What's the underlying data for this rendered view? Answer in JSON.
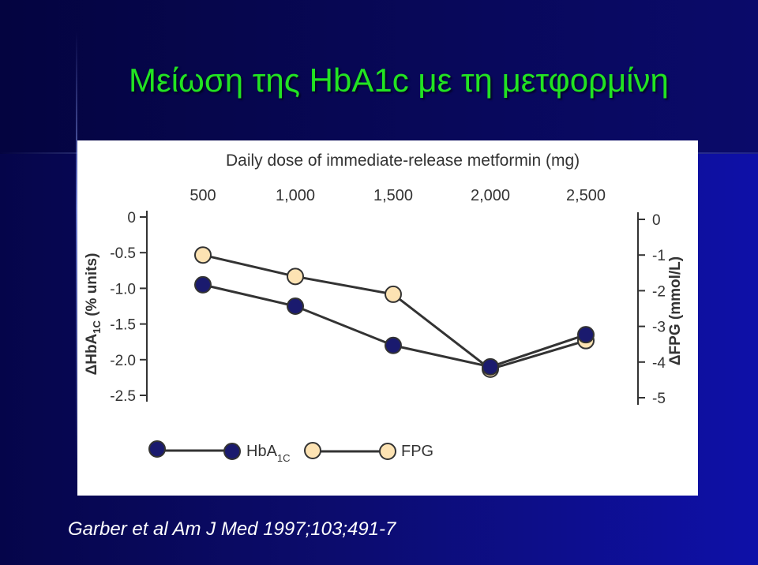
{
  "slide": {
    "title": "Μείωση της HbA1c με τη μετφορμίνη",
    "citation": "Garber et al Am J Med 1997;103;491-7"
  },
  "chart_data": {
    "type": "line",
    "title": "Daily dose of immediate-release metformin (mg)",
    "categories": [
      "500",
      "1,000",
      "1,500",
      "2,000",
      "2,500"
    ],
    "x_axis_position": "top",
    "y_left": {
      "label_main": "ΔHbA",
      "label_sub": "1C",
      "label_rest": " (% units)",
      "range": [
        -2.5,
        0
      ],
      "ticks": [
        "0",
        "-0.5",
        "-1.0",
        "-1.5",
        "-2.0",
        "-2.5"
      ],
      "tick_values": [
        0,
        -0.5,
        -1.0,
        -1.5,
        -2.0,
        -2.5
      ]
    },
    "y_right": {
      "label": "ΔFPG (mmol/L)",
      "range": [
        -5,
        0
      ],
      "ticks": [
        "0",
        "-1",
        "-2",
        "-3",
        "-4",
        "-5"
      ],
      "tick_values": [
        0,
        -1,
        -2,
        -3,
        -4,
        -5
      ]
    },
    "series": [
      {
        "name_main": "HbA",
        "name_sub": "1C",
        "axis": "left",
        "color": "#1a1a6e",
        "values": [
          -0.95,
          -1.25,
          -1.8,
          -2.1,
          -1.65
        ]
      },
      {
        "name": "FPG",
        "axis": "right",
        "color": "#fde3b3",
        "values": [
          -1.0,
          -1.6,
          -2.1,
          -4.2,
          -3.4
        ]
      }
    ],
    "legend_placement": "bottom-left",
    "grid": false
  }
}
